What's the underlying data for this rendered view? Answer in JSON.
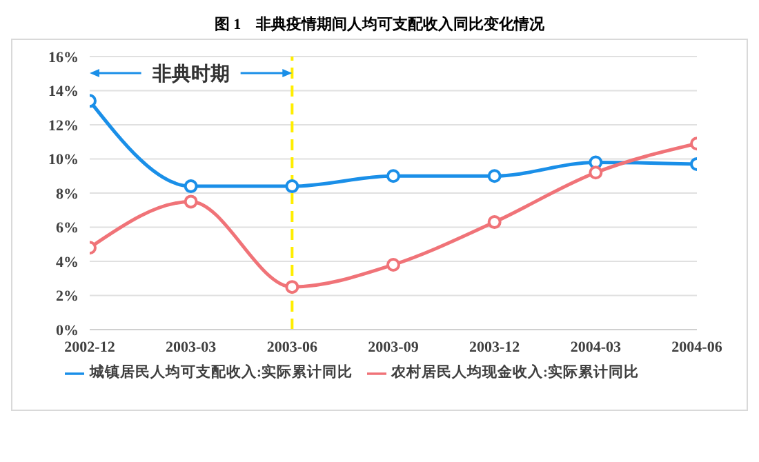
{
  "chart_data": {
    "type": "line",
    "title": "图 1　非典疫情期间人均可支配收入同比变化情况",
    "categories": [
      "2002-12",
      "2003-03",
      "2003-06",
      "2003-09",
      "2003-12",
      "2004-03",
      "2004-06"
    ],
    "series": [
      {
        "name": "城镇居民人均可支配收入:实际累计同比",
        "color": "#1a8fe8",
        "values": [
          13.4,
          8.4,
          8.4,
          9.0,
          9.0,
          9.8,
          9.7
        ]
      },
      {
        "name": "农村居民人均现金收入:实际累计同比",
        "color": "#f07378",
        "values": [
          4.8,
          7.5,
          2.5,
          3.8,
          6.3,
          9.2,
          10.9
        ]
      }
    ],
    "ylim": [
      0,
      16
    ],
    "yticks": [
      {
        "value": 0,
        "label": "0%"
      },
      {
        "value": 2,
        "label": "2%"
      },
      {
        "value": 4,
        "label": "4%"
      },
      {
        "value": 6,
        "label": "6%"
      },
      {
        "value": 8,
        "label": "8%"
      },
      {
        "value": 10,
        "label": "10%"
      },
      {
        "value": 12,
        "label": "12%"
      },
      {
        "value": 14,
        "label": "14%"
      },
      {
        "value": 16,
        "label": "16%"
      }
    ],
    "ref_lines": [
      {
        "axis": "x",
        "value": "2003-06",
        "color": "#ffee00",
        "line_style": "dashed"
      }
    ],
    "annotations": [
      "非典时期"
    ],
    "grid": "y",
    "legend": "bottom",
    "marker": "circle",
    "line_style": "solid"
  }
}
